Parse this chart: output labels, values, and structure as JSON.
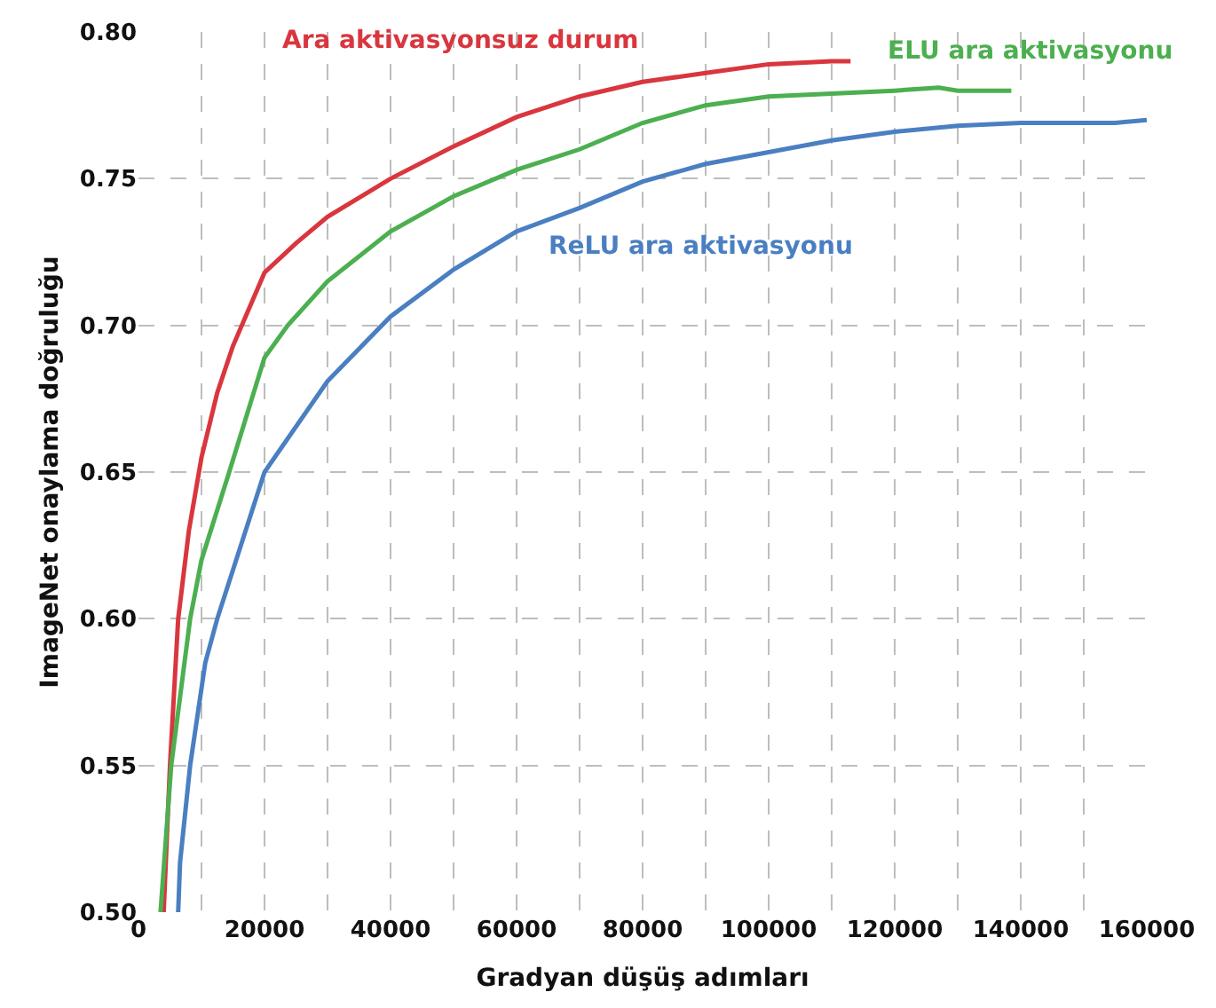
{
  "chart_data": {
    "type": "line",
    "xlabel": "Gradyan düşüş adımları",
    "ylabel": "ImageNet onaylama doğruluğu",
    "xlim": [
      0,
      160000
    ],
    "ylim": [
      0.5,
      0.8
    ],
    "xticks": [
      0,
      {
        "value": 10000,
        "label": null
      },
      20000,
      {
        "value": 30000,
        "label": null
      },
      40000,
      {
        "value": 50000,
        "label": null
      },
      60000,
      {
        "value": 70000,
        "label": null
      },
      80000,
      {
        "value": 90000,
        "label": null
      },
      100000,
      {
        "value": 110000,
        "label": null
      },
      120000,
      {
        "value": 130000,
        "label": null
      },
      140000,
      {
        "value": 150000,
        "label": null
      },
      160000
    ],
    "yticks": [
      {
        "value": 0.5,
        "label": "0.50"
      },
      {
        "value": 0.55,
        "label": "0.55"
      },
      {
        "value": 0.6,
        "label": "0.60"
      },
      {
        "value": 0.65,
        "label": "0.65"
      },
      {
        "value": 0.7,
        "label": "0.70"
      },
      {
        "value": 0.75,
        "label": "0.75"
      },
      {
        "value": 0.8,
        "label": "0.80"
      }
    ],
    "grid": true,
    "legend": false,
    "marker": "none",
    "line_style": "solid",
    "series": [
      {
        "name": "Ara aktivasyonsuz durum",
        "color": "#d9363e",
        "x": [
          4000,
          5000,
          6300,
          8000,
          10000,
          12500,
          15000,
          20000,
          25000,
          30000,
          40000,
          50000,
          60000,
          70000,
          80000,
          90000,
          100000,
          110000,
          113000
        ],
        "values": [
          0.5,
          0.55,
          0.6,
          0.63,
          0.655,
          0.677,
          0.693,
          0.718,
          0.728,
          0.737,
          0.75,
          0.761,
          0.771,
          0.778,
          0.783,
          0.786,
          0.789,
          0.79,
          0.79
        ]
      },
      {
        "name": "ELU ara aktivasyonu",
        "color": "#4caf50",
        "x": [
          3500,
          5200,
          8200,
          10000,
          14400,
          20000,
          23700,
          30000,
          40000,
          50000,
          60000,
          70000,
          80000,
          90000,
          100000,
          110000,
          120000,
          127000,
          130000,
          138500
        ],
        "values": [
          0.5,
          0.55,
          0.6,
          0.62,
          0.65,
          0.689,
          0.7,
          0.715,
          0.732,
          0.744,
          0.753,
          0.76,
          0.769,
          0.775,
          0.778,
          0.779,
          0.78,
          0.781,
          0.78,
          0.78
        ]
      },
      {
        "name": "ReLU ara aktivasyonu",
        "color": "#4a7fc1",
        "x": [
          6300,
          6600,
          8200,
          10600,
          12500,
          20000,
          30000,
          40000,
          50000,
          60000,
          70000,
          80000,
          90000,
          100000,
          110000,
          120000,
          130000,
          140000,
          150000,
          155000,
          160000
        ],
        "values": [
          0.5,
          0.517,
          0.55,
          0.585,
          0.6,
          0.65,
          0.681,
          0.703,
          0.719,
          0.732,
          0.74,
          0.749,
          0.755,
          0.759,
          0.763,
          0.766,
          0.768,
          0.769,
          0.769,
          0.769,
          0.77
        ]
      }
    ]
  }
}
